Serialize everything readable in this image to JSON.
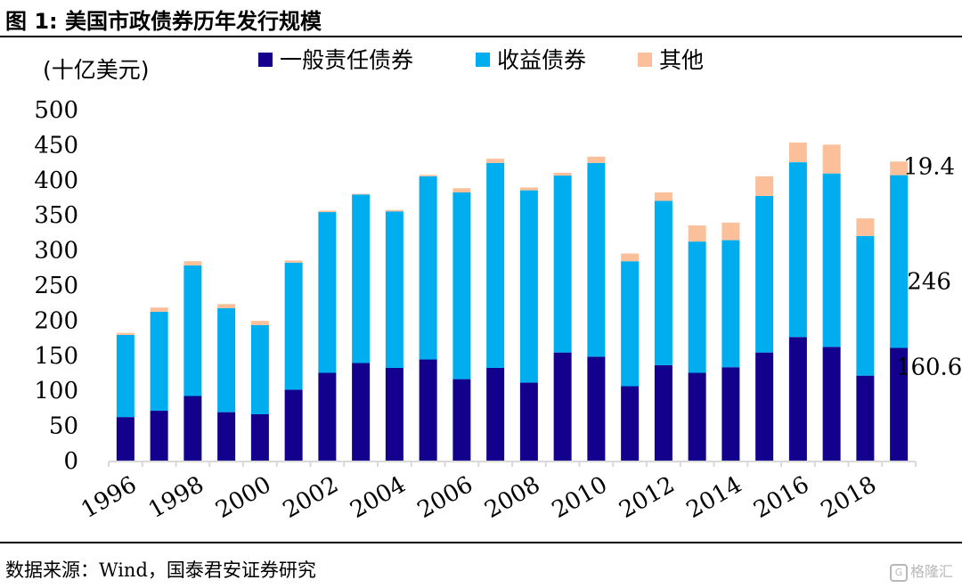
{
  "header": {
    "title": "图 1:  美国市政债券历年发行规模"
  },
  "footer": {
    "source": "数据来源：Wind，国泰君安证券研究",
    "watermark": "格隆汇"
  },
  "chart_data": {
    "type": "stacked-bar",
    "title": "美国市政债券历年发行规模",
    "ylabel": "(十亿美元)",
    "ylim": [
      0,
      500
    ],
    "yticks": [
      0,
      50,
      100,
      150,
      200,
      250,
      300,
      350,
      400,
      450,
      500
    ],
    "grid": false,
    "legend_position": "top",
    "categories": [
      "1996",
      "1997",
      "1998",
      "1999",
      "2000",
      "2001",
      "2002",
      "2003",
      "2004",
      "2005",
      "2006",
      "2007",
      "2008",
      "2009",
      "2010",
      "2011",
      "2012",
      "2013",
      "2014",
      "2015",
      "2016",
      "2017",
      "2018",
      "2019"
    ],
    "x_tick_labels": [
      "1996",
      "1998",
      "2000",
      "2002",
      "2004",
      "2006",
      "2008",
      "2010",
      "2012",
      "2014",
      "2016",
      "2018"
    ],
    "series": [
      {
        "name": "一般责任债券",
        "color": "#13008C",
        "values": [
          62,
          71,
          92,
          69,
          66,
          101,
          125,
          139,
          132,
          144,
          116,
          132,
          111,
          154,
          148,
          106,
          136,
          125,
          133,
          154,
          176,
          162,
          121,
          160.6
        ]
      },
      {
        "name": "收益债券",
        "color": "#00AEEF",
        "values": [
          117,
          141,
          186,
          148,
          127,
          181,
          229,
          240,
          223,
          261,
          266,
          292,
          274,
          252,
          276,
          178,
          234,
          187,
          181,
          223,
          249,
          247,
          199,
          246
        ]
      },
      {
        "name": "其他",
        "color": "#FBC09A",
        "values": [
          3,
          6,
          6,
          6,
          6,
          3,
          2,
          1,
          2,
          2,
          6,
          6,
          4,
          4,
          9,
          11,
          12,
          23,
          25,
          28,
          28,
          41,
          25,
          19.4
        ]
      }
    ],
    "annotations": [
      {
        "text": "19.4",
        "series": 2,
        "index": 23
      },
      {
        "text": "246",
        "series": 1,
        "index": 23
      },
      {
        "text": "160.6",
        "series": 0,
        "index": 23
      }
    ]
  }
}
